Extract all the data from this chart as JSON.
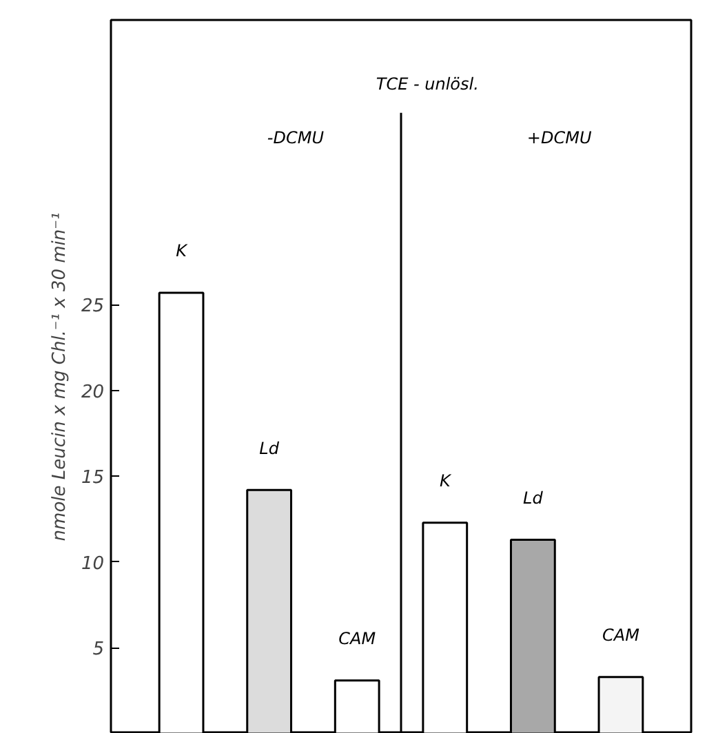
{
  "chart_data": {
    "type": "bar",
    "title": "TCE - unlösl.",
    "ylabel": "nmole Leucin x mg Chl.⁻¹ x 30 min⁻¹",
    "categories": [
      "K",
      "Ld",
      "CAM",
      "K",
      "Ld",
      "CAM"
    ],
    "values": [
      25.7,
      14.2,
      3.1,
      12.3,
      11.3,
      3.3
    ],
    "colors": [
      "#ffffff",
      "#dcdcdc",
      "#ffffff",
      "#ffffff",
      "#a8a8a8",
      "#f4f4f4"
    ],
    "annotations": [
      "-DCMU",
      "+DCMU"
    ],
    "ylim": [
      0,
      41.6
    ],
    "yticks": [
      5,
      10,
      15,
      20,
      25
    ],
    "tick_labels": "y"
  }
}
